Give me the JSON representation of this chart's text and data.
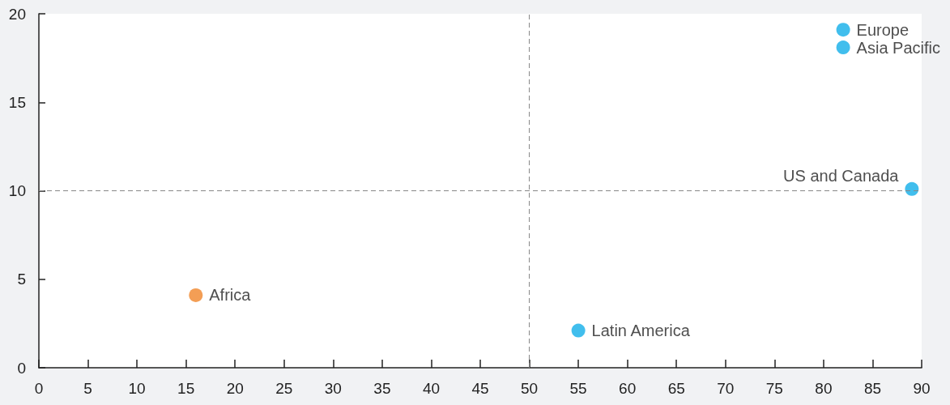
{
  "chart_data": {
    "type": "scatter",
    "marker": "circle",
    "grid": false,
    "legend": false,
    "xlim": [
      0,
      90
    ],
    "xticks": [
      0,
      5,
      10,
      15,
      20,
      25,
      30,
      35,
      40,
      45,
      50,
      55,
      60,
      65,
      70,
      75,
      80,
      85,
      90
    ],
    "ylim": [
      0,
      20
    ],
    "yticks": [
      0,
      5,
      10,
      15,
      20
    ],
    "series": [
      {
        "name": "Africa",
        "color": "#f0862a",
        "x": [
          16
        ],
        "values": [
          4.1
        ]
      },
      {
        "name": "Latin America",
        "color": "#12aee8",
        "x": [
          55
        ],
        "values": [
          2.1
        ]
      },
      {
        "name": "US and Canada",
        "color": "#12aee8",
        "x": [
          89
        ],
        "values": [
          10.1
        ]
      },
      {
        "name": "Europe",
        "color": "#12aee8",
        "x": [
          82
        ],
        "values": [
          19.1
        ]
      },
      {
        "name": "Asia Pacific",
        "color": "#12aee8",
        "x": [
          82
        ],
        "values": [
          18.1
        ]
      }
    ],
    "ref_lines": [
      {
        "axis": "x",
        "value": 50,
        "color": "#888888",
        "line_style": "dashed"
      },
      {
        "axis": "y",
        "value": 10,
        "color": "#888888",
        "line_style": "dashed"
      }
    ]
  }
}
